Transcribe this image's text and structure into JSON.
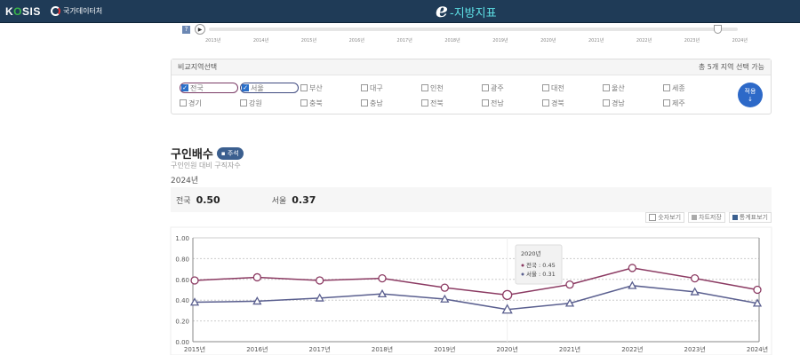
{
  "header": {
    "logo": "KOSIS",
    "org": "국가데이터처",
    "brand_e": "e",
    "brand_text": "-지방지표"
  },
  "timeline": {
    "help": "?",
    "years": [
      "2013년",
      "2014년",
      "2015년",
      "2016년",
      "2017년",
      "2018년",
      "2019년",
      "2020년",
      "2021년",
      "2022년",
      "2023년",
      "2024년"
    ],
    "selected": "2024년"
  },
  "compare": {
    "title": "비교지역선택",
    "hint": "총 5개 지역 선택 가능",
    "apply": "적용",
    "regions": [
      {
        "name": "전국",
        "checked": true
      },
      {
        "name": "서울",
        "checked": true
      },
      {
        "name": "부산",
        "checked": false
      },
      {
        "name": "대구",
        "checked": false
      },
      {
        "name": "인천",
        "checked": false
      },
      {
        "name": "광주",
        "checked": false
      },
      {
        "name": "대전",
        "checked": false
      },
      {
        "name": "울산",
        "checked": false
      },
      {
        "name": "세종",
        "checked": false
      },
      {
        "name": "경기",
        "checked": false
      },
      {
        "name": "강원",
        "checked": false
      },
      {
        "name": "충북",
        "checked": false
      },
      {
        "name": "충남",
        "checked": false
      },
      {
        "name": "전북",
        "checked": false
      },
      {
        "name": "전남",
        "checked": false
      },
      {
        "name": "경북",
        "checked": false
      },
      {
        "name": "경남",
        "checked": false
      },
      {
        "name": "제주",
        "checked": false
      }
    ]
  },
  "indicator": {
    "title": "구인배수",
    "badge": "주석",
    "subtitle": "구인인원 대비 구직자수",
    "year": "2024년",
    "summary": [
      {
        "region": "전국",
        "value": "0.50"
      },
      {
        "region": "서울",
        "value": "0.37"
      }
    ]
  },
  "tools": {
    "show_values": "숫자보기",
    "save_chart": "차트저장",
    "view_stats": "통계표보기"
  },
  "chart_data": {
    "type": "line",
    "categories": [
      "2015년",
      "2016년",
      "2017년",
      "2018년",
      "2019년",
      "2020년",
      "2021년",
      "2022년",
      "2023년",
      "2024년"
    ],
    "ylim": [
      0,
      1
    ],
    "yticks": [
      "0.00",
      "0.20",
      "0.40",
      "0.60",
      "0.80",
      "1.00"
    ],
    "grid": true,
    "series": [
      {
        "name": "전국",
        "color": "#8b3a62",
        "marker": "circle",
        "values": [
          0.59,
          0.62,
          0.59,
          0.61,
          0.52,
          0.45,
          0.55,
          0.71,
          0.61,
          0.5
        ]
      },
      {
        "name": "서울",
        "color": "#5a5f8f",
        "marker": "triangle",
        "values": [
          0.38,
          0.39,
          0.42,
          0.46,
          0.41,
          0.31,
          0.37,
          0.54,
          0.48,
          0.37
        ]
      }
    ],
    "tooltip": {
      "title": "2020년",
      "rows": [
        {
          "label": "전국 : 0.45"
        },
        {
          "label": "서울 : 0.31"
        }
      ]
    }
  }
}
